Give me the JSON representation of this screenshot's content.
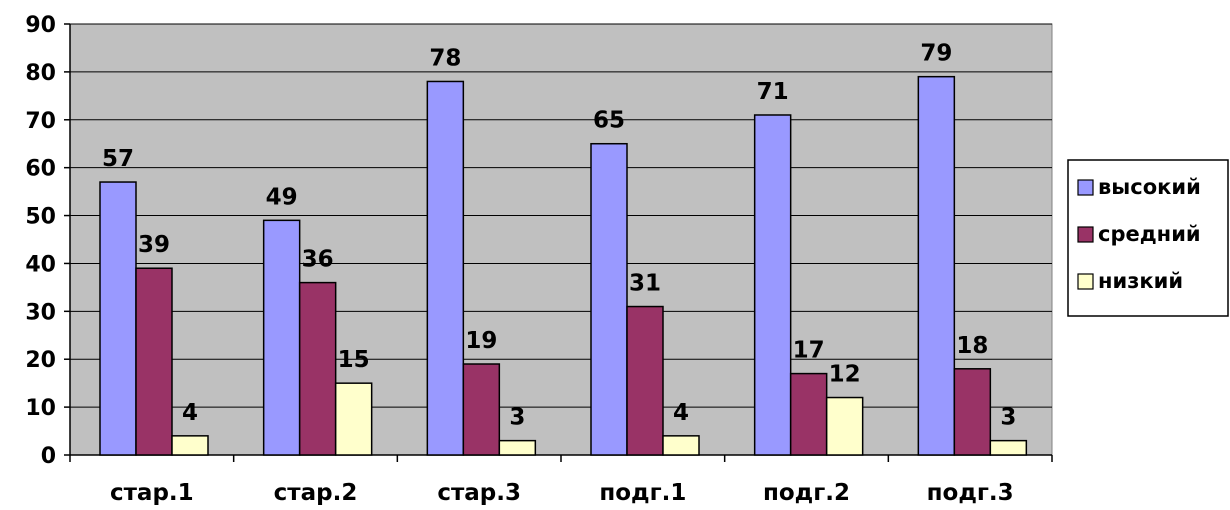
{
  "chart_data": {
    "type": "bar",
    "categories": [
      "стар.1",
      "стар.2",
      "стар.3",
      "подг.1",
      "подг.2",
      "подг.3"
    ],
    "series": [
      {
        "name": "высокий",
        "color": "#9999FF",
        "values": [
          57,
          49,
          78,
          65,
          71,
          79
        ]
      },
      {
        "name": "средний",
        "color": "#993366",
        "values": [
          39,
          36,
          19,
          31,
          17,
          18
        ]
      },
      {
        "name": "низкий",
        "color": "#FFFFCC",
        "values": [
          4,
          15,
          3,
          4,
          12,
          3
        ]
      }
    ],
    "ylim": [
      0,
      90
    ],
    "yticks": [
      0,
      10,
      20,
      30,
      40,
      50,
      60,
      70,
      80,
      90
    ],
    "grid": true,
    "plot_background": "#C0C0C0",
    "legend_position": "right"
  }
}
